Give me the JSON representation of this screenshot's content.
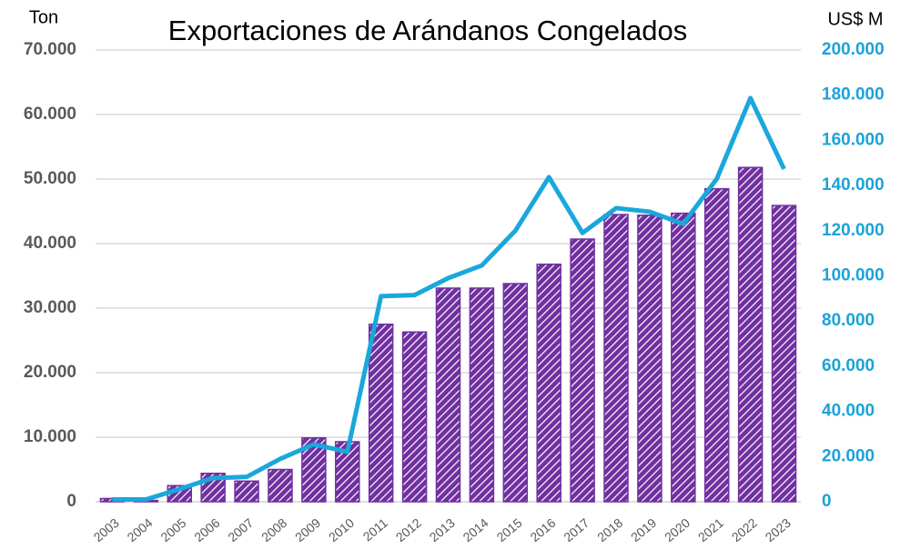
{
  "chart_data": {
    "type": "bar-line",
    "title": "Exportaciones de Arándanos Congelados",
    "ylabel": "Ton",
    "y2label": "US$ M",
    "categories": [
      "2003",
      "2004",
      "2005",
      "2006",
      "2007",
      "2008",
      "2009",
      "2010",
      "2011",
      "2012",
      "2013",
      "2014",
      "2015",
      "2016",
      "2017",
      "2018",
      "2019",
      "2020",
      "2021",
      "2022",
      "2023"
    ],
    "series": [
      {
        "type": "bar",
        "color": "#7030a0",
        "values": [
          500,
          200,
          2500,
          4400,
          3200,
          5000,
          9900,
          9300,
          27500,
          26300,
          33100,
          33100,
          33800,
          36800,
          40700,
          44500,
          44400,
          44700,
          48500,
          51800,
          45900
        ]
      },
      {
        "type": "line",
        "color": "#1aa7dc",
        "axis": "y2",
        "values": [
          1000,
          1000,
          5600,
          10500,
          11000,
          19000,
          25400,
          22100,
          91000,
          91500,
          99000,
          104600,
          120000,
          143700,
          119000,
          130000,
          128400,
          123000,
          143000,
          178700,
          147300
        ]
      }
    ],
    "ylim": [
      0,
      70000
    ],
    "yticks": [
      0,
      {
        "value": 10000,
        "label": "10.000"
      },
      {
        "value": 20000,
        "label": "20.000"
      },
      {
        "value": 30000,
        "label": "30.000"
      },
      {
        "value": 40000,
        "label": "40.000"
      },
      {
        "value": 50000,
        "label": "50.000"
      },
      {
        "value": 60000,
        "label": "60.000"
      },
      {
        "value": 70000,
        "label": "70.000"
      }
    ],
    "y2lim": [
      0,
      200000
    ],
    "y2ticks": [
      0,
      {
        "value": 20000,
        "label": "20.000"
      },
      {
        "value": 40000,
        "label": "40.000"
      },
      {
        "value": 60000,
        "label": "60.000"
      },
      {
        "value": 80000,
        "label": "80.000"
      },
      {
        "value": 100000,
        "label": "100.000"
      },
      {
        "value": 120000,
        "label": "120.000"
      },
      {
        "value": 140000,
        "label": "140.000"
      },
      {
        "value": 160000,
        "label": "160.000"
      },
      {
        "value": 180000,
        "label": "180.000"
      },
      {
        "value": 200000,
        "label": "200.000"
      }
    ],
    "grid": true
  }
}
